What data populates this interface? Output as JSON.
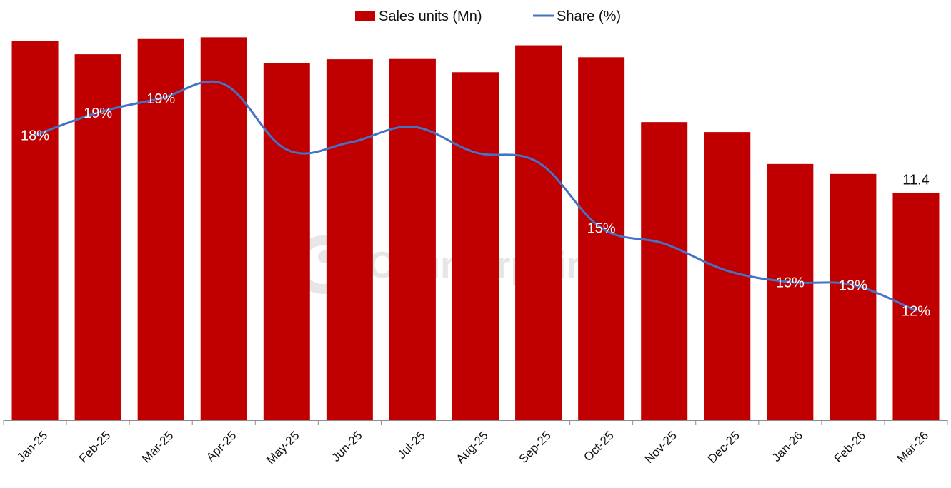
{
  "chart_data": {
    "type": "bar",
    "categories": [
      "Jan-25",
      "Feb-25",
      "Mar-25",
      "Apr-25",
      "May-25",
      "Jun-25",
      "Jul-25",
      "Aug-25",
      "Sep-25",
      "Oct-25",
      "Nov-25",
      "Dec-25",
      "Jan-26",
      "Feb-26",
      "Mar-26"
    ],
    "series": [
      {
        "name": "Sales units (Mn)",
        "type": "bar",
        "color": "#C00000",
        "values": [
          19.0,
          18.35,
          19.15,
          19.2,
          17.9,
          18.1,
          18.15,
          17.45,
          18.8,
          18.2,
          14.95,
          14.45,
          12.85,
          12.35,
          11.4
        ]
      },
      {
        "name": "Share (%)",
        "type": "line",
        "color": "#4472C4",
        "values": [
          18.0,
          18.8,
          19.3,
          19.8,
          17.5,
          17.75,
          18.3,
          17.4,
          17.05,
          14.75,
          14.2,
          13.25,
          12.85,
          12.75,
          11.85
        ]
      }
    ],
    "data_labels": {
      "share": [
        "18%",
        "19%",
        "19%",
        "",
        "",
        "",
        "",
        "",
        "",
        "15%",
        "",
        "",
        "13%",
        "13%",
        "12%"
      ],
      "sales": [
        "",
        "",
        "",
        "",
        "",
        "",
        "",
        "",
        "",
        "",
        "",
        "",
        "",
        "",
        "11.4"
      ]
    },
    "legend": {
      "placement": "top-center",
      "items": [
        "Sales units (Mn)",
        "Share (%)"
      ]
    },
    "ylim_sales": [
      0,
      20
    ],
    "ylim_share": [
      8,
      22
    ],
    "title": "",
    "xlabel": "",
    "ylabel": "",
    "grid": false
  },
  "watermark": {
    "text": "Counterpoint"
  }
}
